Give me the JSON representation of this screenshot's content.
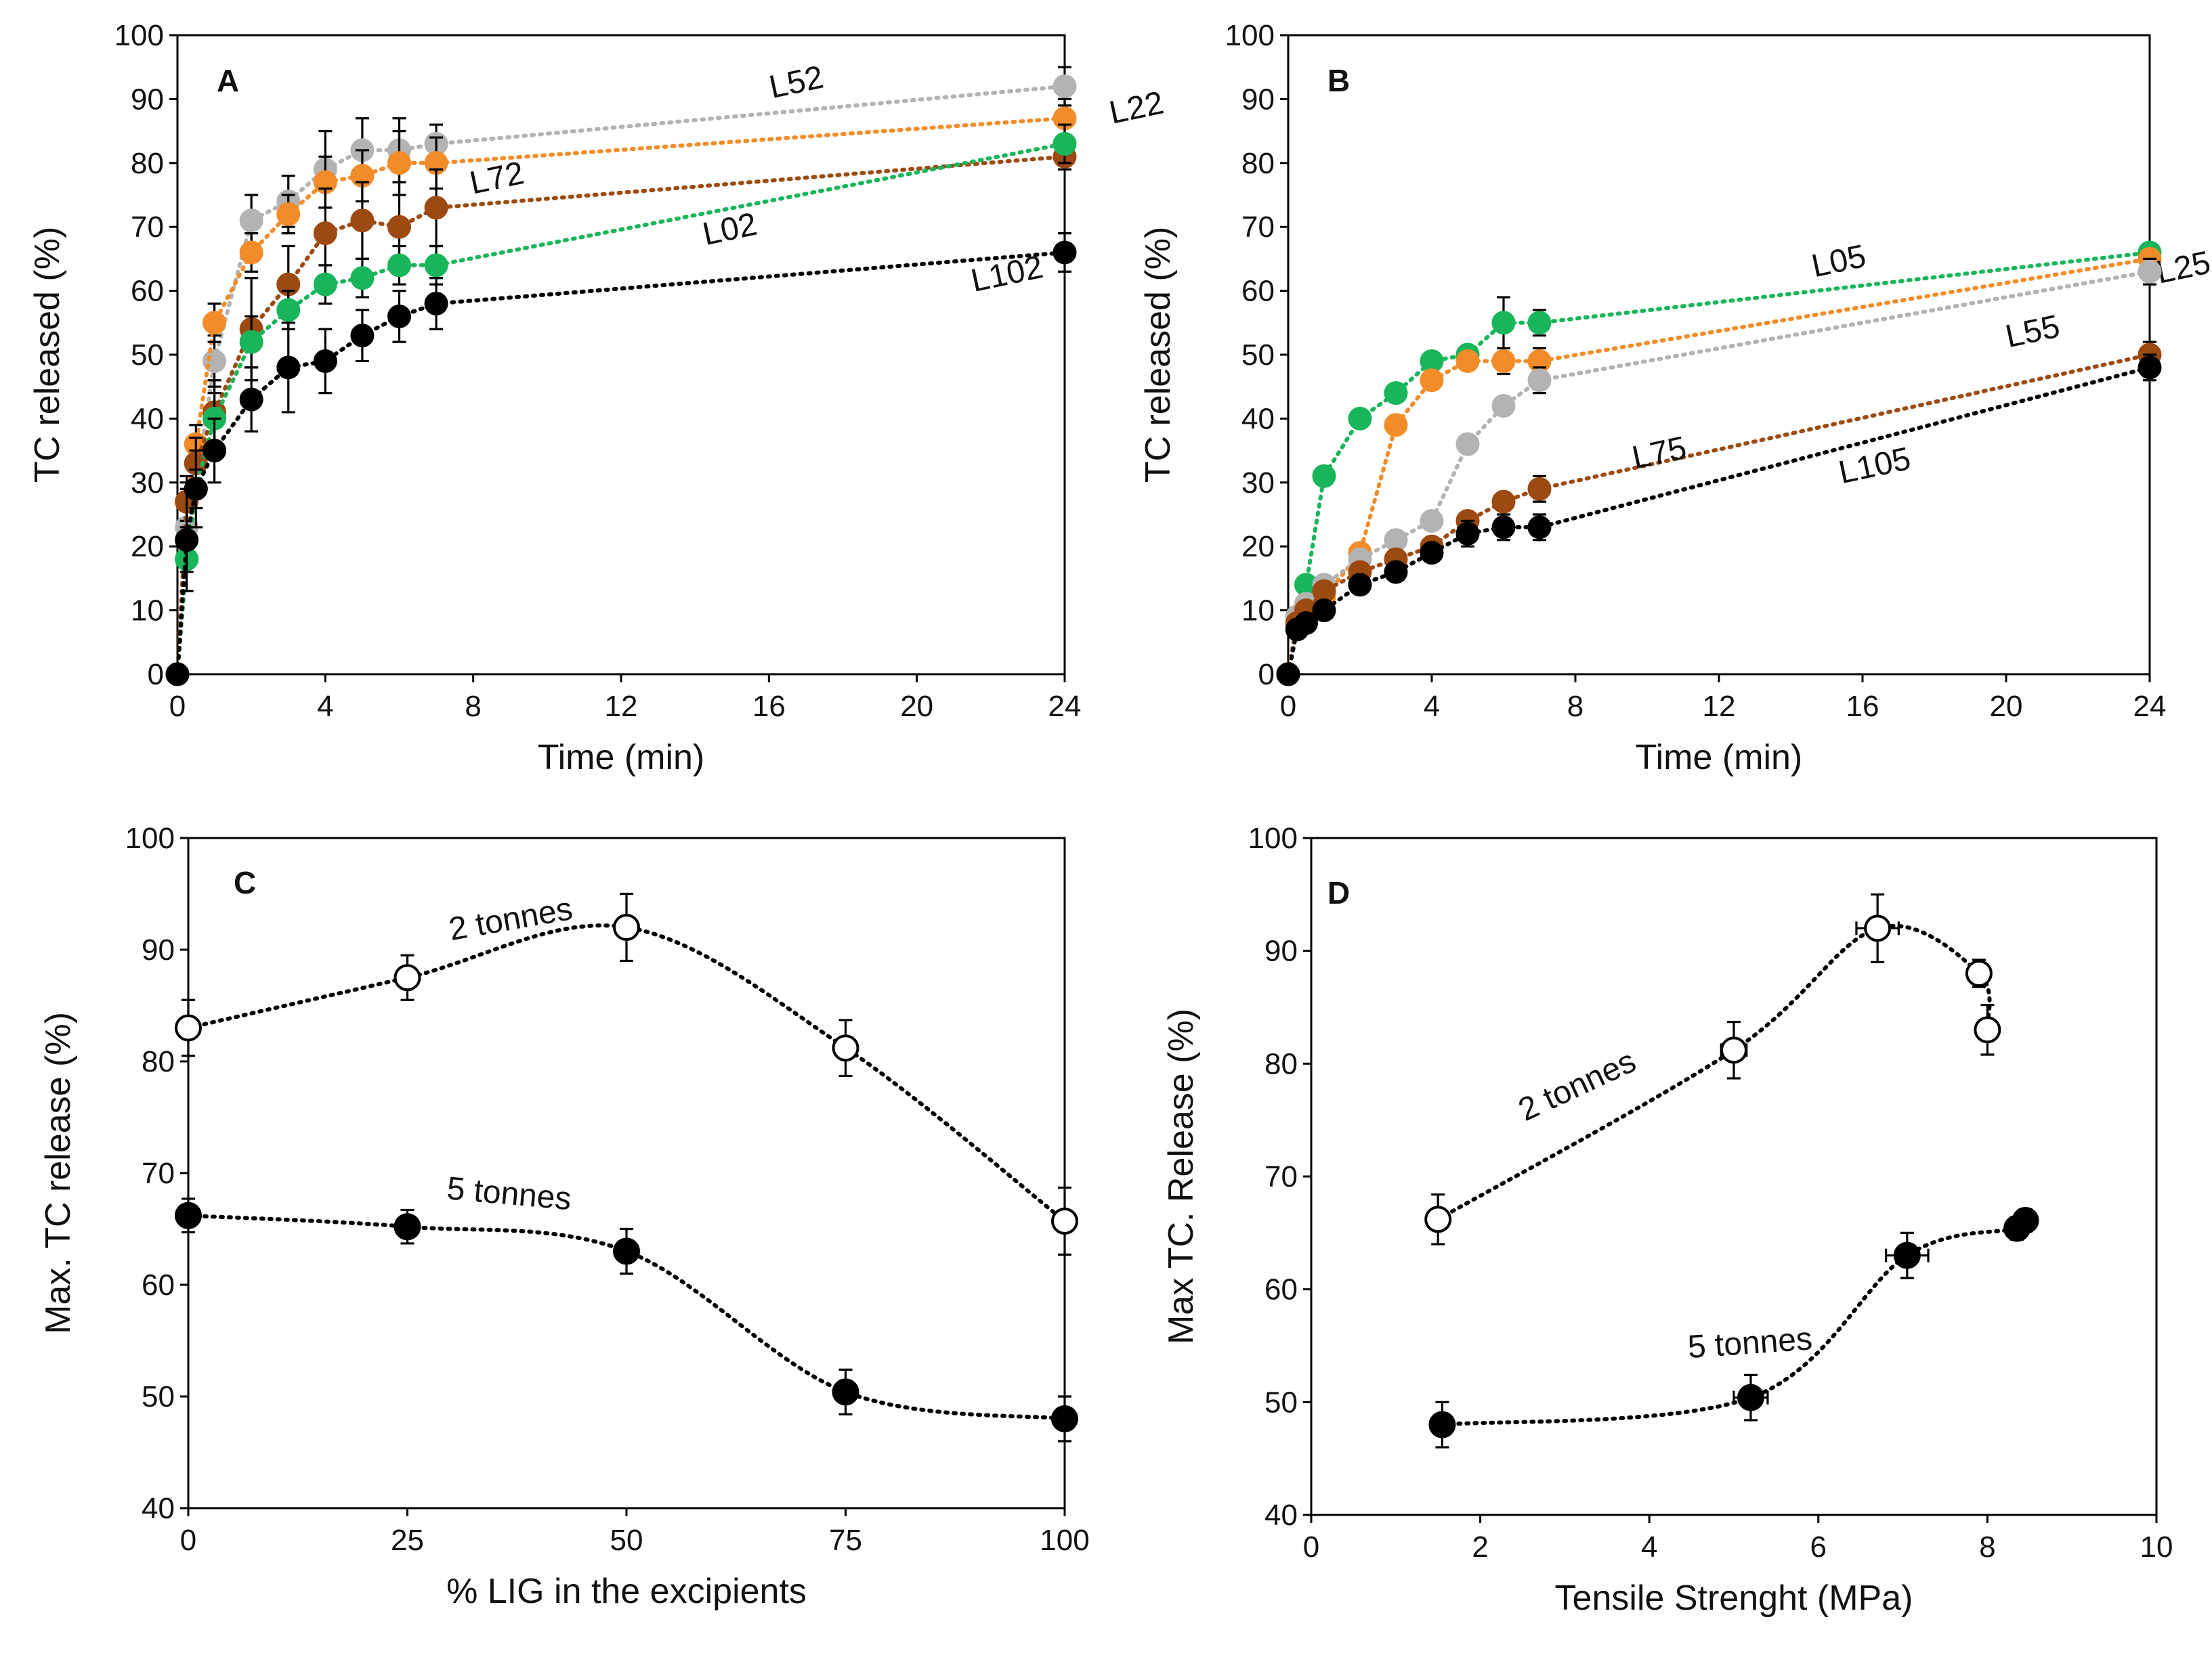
{
  "colors": {
    "gray": "#b3b3b3",
    "orange": "#f28c28",
    "brown": "#9c4a12",
    "green": "#19b55a",
    "black": "#000000",
    "open": "#ffffff"
  },
  "chart_data": [
    {
      "id": "A",
      "panel_label": "A",
      "type": "line",
      "xlabel": "Time (min)",
      "ylabel": "TC released (%)",
      "xlim": [
        0,
        24
      ],
      "ylim": [
        0,
        100
      ],
      "xticks": [
        0,
        4,
        8,
        12,
        16,
        20,
        24
      ],
      "yticks": [
        0,
        10,
        20,
        30,
        40,
        50,
        60,
        70,
        80,
        90,
        100
      ],
      "series": [
        {
          "name": "L52",
          "color": "gray",
          "x": [
            0,
            0.25,
            0.5,
            1,
            2,
            3,
            4,
            5,
            6,
            7,
            24
          ],
          "y": [
            0,
            23,
            29,
            49,
            71,
            74,
            79,
            82,
            82,
            83,
            92
          ],
          "err": [
            0,
            3,
            3,
            4,
            4,
            4,
            6,
            5,
            5,
            3,
            3
          ],
          "label_at": [
            16.8,
            91
          ]
        },
        {
          "name": "L22",
          "color": "orange",
          "x": [
            0,
            0.25,
            0.5,
            1,
            2,
            3,
            4,
            5,
            6,
            7,
            24
          ],
          "y": [
            0,
            27,
            36,
            55,
            66,
            72,
            77,
            78,
            80,
            80,
            87
          ],
          "err": [
            0,
            3,
            3,
            3,
            3,
            3,
            4,
            4,
            5,
            4,
            3
          ],
          "label_at": [
            26.0,
            87
          ]
        },
        {
          "name": "L72",
          "color": "brown",
          "x": [
            0,
            0.25,
            0.5,
            1,
            2,
            3,
            4,
            5,
            6,
            7,
            24
          ],
          "y": [
            0,
            27,
            33,
            41,
            54,
            61,
            69,
            71,
            70,
            73,
            81
          ],
          "err": [
            0,
            4,
            4,
            5,
            8,
            6,
            7,
            6,
            7,
            6,
            2
          ],
          "label_at": [
            8.7,
            76
          ]
        },
        {
          "name": "L02",
          "color": "green",
          "x": [
            0,
            0.25,
            0.5,
            1,
            2,
            3,
            4,
            5,
            6,
            7,
            24
          ],
          "y": [
            0,
            18,
            29,
            40,
            52,
            57,
            61,
            62,
            64,
            64,
            83
          ],
          "err": [
            0,
            2,
            3,
            4,
            4,
            3,
            3,
            3,
            3,
            3,
            3
          ],
          "label_at": [
            15.0,
            68
          ]
        },
        {
          "name": "L102",
          "color": "black",
          "x": [
            0,
            0.25,
            0.5,
            1,
            2,
            3,
            4,
            5,
            6,
            7,
            24
          ],
          "y": [
            0,
            21,
            29,
            35,
            43,
            48,
            49,
            53,
            56,
            58,
            66
          ],
          "err": [
            0,
            8,
            6,
            5,
            5,
            7,
            5,
            4,
            4,
            4,
            3
          ],
          "label_at": [
            22.5,
            61
          ]
        }
      ]
    },
    {
      "id": "B",
      "panel_label": "B",
      "type": "line",
      "xlabel": "Time (min)",
      "ylabel": "TC released (%)",
      "xlim": [
        0,
        24
      ],
      "ylim": [
        0,
        100
      ],
      "xticks": [
        0,
        4,
        8,
        12,
        16,
        20,
        24
      ],
      "yticks": [
        0,
        10,
        20,
        30,
        40,
        50,
        60,
        70,
        80,
        90,
        100
      ],
      "series": [
        {
          "name": "L05",
          "color": "green",
          "x": [
            0,
            0.25,
            0.5,
            1,
            2,
            3,
            4,
            5,
            6,
            7,
            24
          ],
          "y": [
            0,
            9,
            14,
            31,
            40,
            44,
            49,
            50,
            55,
            55,
            66
          ],
          "err": [
            0,
            1,
            1,
            1,
            1,
            1,
            1,
            1,
            4,
            2,
            1
          ],
          "label_at": [
            15.4,
            63
          ]
        },
        {
          "name": "L25",
          "color": "orange",
          "x": [
            0,
            0.25,
            0.5,
            1,
            2,
            3,
            4,
            5,
            6,
            7,
            24
          ],
          "y": [
            0,
            9,
            11,
            12,
            19,
            39,
            46,
            49,
            49,
            49,
            65
          ],
          "err": [
            0,
            1,
            1,
            1,
            1,
            1,
            1,
            1,
            2,
            2,
            1
          ],
          "label_at": [
            25.0,
            62
          ]
        },
        {
          "name": "L55",
          "color": "gray",
          "x": [
            0,
            0.25,
            0.5,
            1,
            2,
            3,
            4,
            5,
            6,
            7,
            24
          ],
          "y": [
            0,
            9,
            11,
            14,
            18,
            21,
            24,
            36,
            42,
            46,
            63
          ],
          "err": [
            0,
            1,
            1,
            1,
            1,
            1,
            1,
            1,
            1,
            2,
            2
          ],
          "label_at": [
            20.8,
            52
          ]
        },
        {
          "name": "L75",
          "color": "brown",
          "x": [
            0,
            0.25,
            0.5,
            1,
            2,
            3,
            4,
            5,
            6,
            7,
            24
          ],
          "y": [
            0,
            8,
            10,
            13,
            16,
            18,
            20,
            24,
            27,
            29,
            50
          ],
          "err": [
            0,
            1,
            1,
            1,
            1,
            1,
            1,
            1,
            1,
            2,
            2
          ],
          "label_at": [
            10.4,
            33
          ]
        },
        {
          "name": "L105",
          "color": "black",
          "x": [
            0,
            0.25,
            0.5,
            1,
            2,
            3,
            4,
            5,
            6,
            7,
            24
          ],
          "y": [
            0,
            7,
            8,
            10,
            14,
            16,
            19,
            22,
            23,
            23,
            48
          ],
          "err": [
            0,
            1,
            1,
            1,
            1,
            1,
            1,
            2,
            2,
            2,
            2
          ],
          "label_at": [
            16.4,
            31
          ]
        }
      ]
    },
    {
      "id": "C",
      "panel_label": "C",
      "type": "scatter",
      "xlabel": "% LIG in the excipients",
      "ylabel": "Max. TC release (%)",
      "xlim": [
        0,
        100
      ],
      "ylim": [
        40,
        100
      ],
      "xticks": [
        0,
        25,
        50,
        75,
        100
      ],
      "yticks": [
        40,
        50,
        60,
        70,
        80,
        90,
        100
      ],
      "series": [
        {
          "name": "2 tonnes",
          "color": "black",
          "fill": "open",
          "x": [
            0,
            25,
            50,
            75,
            100
          ],
          "y": [
            83,
            87.5,
            92,
            81.2,
            65.7
          ],
          "err": [
            2.5,
            2,
            3,
            2.5,
            3
          ],
          "label_at": [
            37,
            91.8
          ],
          "label_rotate": -10
        },
        {
          "name": "5 tonnes",
          "color": "black",
          "fill": "black",
          "x": [
            0,
            25,
            50,
            75,
            100
          ],
          "y": [
            66.2,
            65.2,
            63,
            50.4,
            48
          ],
          "err": [
            1.5,
            1.5,
            2,
            2,
            2
          ],
          "label_at": [
            36.5,
            67.2
          ],
          "label_rotate": 5
        }
      ]
    },
    {
      "id": "D",
      "panel_label": "D",
      "type": "scatter",
      "xlabel": "Tensile Strenght (MPa)",
      "ylabel": "Max TC. Release (%)",
      "xlim": [
        0,
        10
      ],
      "ylim": [
        40,
        100
      ],
      "xticks": [
        0,
        2,
        4,
        6,
        8,
        10
      ],
      "yticks": [
        40,
        50,
        60,
        70,
        80,
        90,
        100
      ],
      "series": [
        {
          "name": "2 tonnes",
          "color": "black",
          "fill": "open",
          "x": [
            1.5,
            5,
            6.7,
            7.9,
            8.0
          ],
          "y": [
            66.2,
            81.2,
            92,
            88,
            83
          ],
          "err": [
            2.2,
            2.5,
            3,
            1.2,
            2.2
          ],
          "xerr": [
            0.05,
            0.15,
            0.25,
            0.1,
            0.05
          ],
          "label_at": [
            3.2,
            77.2
          ],
          "label_rotate": -25
        },
        {
          "name": "5 tonnes",
          "color": "black",
          "fill": "black",
          "x": [
            1.55,
            5.2,
            7.05,
            8.35,
            8.45
          ],
          "y": [
            48,
            50.4,
            63,
            65.4,
            66.1
          ],
          "err": [
            2,
            2,
            2,
            1,
            1
          ],
          "xerr": [
            0.05,
            0.2,
            0.25,
            0.1,
            0.05
          ],
          "label_at": [
            5.2,
            54.3
          ],
          "label_rotate": -4
        }
      ]
    }
  ]
}
